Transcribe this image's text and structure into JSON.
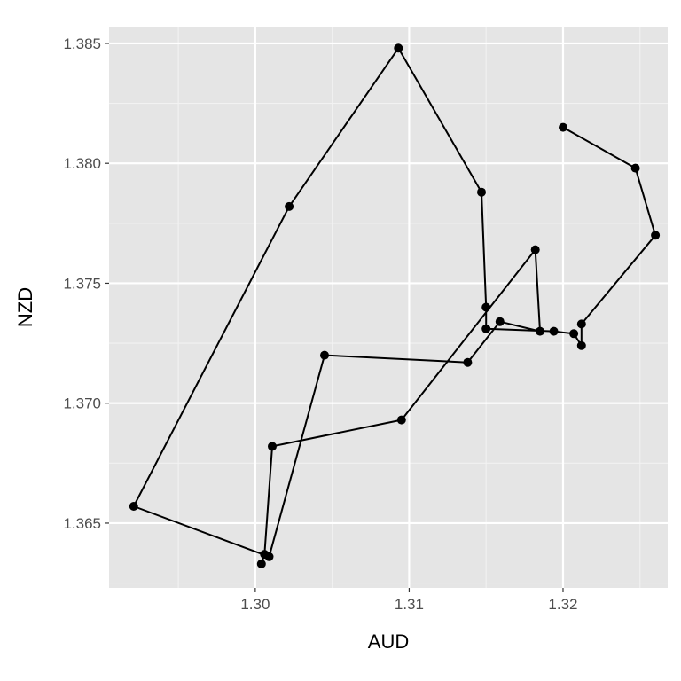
{
  "chart_data": {
    "type": "line",
    "title": "",
    "xlabel": "AUD",
    "ylabel": "NZD",
    "xlim": [
      1.2905,
      1.3268
    ],
    "ylim": [
      1.3623,
      1.3857
    ],
    "x_ticks": [
      1.3,
      1.31,
      1.32
    ],
    "x_tick_labels": [
      "1.30",
      "1.31",
      "1.32"
    ],
    "y_ticks": [
      1.365,
      1.37,
      1.375,
      1.38,
      1.385
    ],
    "y_tick_labels": [
      "1.365",
      "1.370",
      "1.375",
      "1.380",
      "1.385"
    ],
    "grid": true,
    "points": [
      {
        "x": 1.32,
        "y": 1.3815
      },
      {
        "x": 1.3247,
        "y": 1.3798
      },
      {
        "x": 1.326,
        "y": 1.377
      },
      {
        "x": 1.3212,
        "y": 1.3733
      },
      {
        "x": 1.3212,
        "y": 1.3724
      },
      {
        "x": 1.3207,
        "y": 1.3729
      },
      {
        "x": 1.3194,
        "y": 1.373
      },
      {
        "x": 1.315,
        "y": 1.3731
      },
      {
        "x": 1.315,
        "y": 1.374
      },
      {
        "x": 1.3147,
        "y": 1.3788
      },
      {
        "x": 1.3093,
        "y": 1.3848
      },
      {
        "x": 1.3022,
        "y": 1.3782
      },
      {
        "x": 1.2921,
        "y": 1.3657
      },
      {
        "x": 1.3009,
        "y": 1.3636
      },
      {
        "x": 1.3045,
        "y": 1.372
      },
      {
        "x": 1.3138,
        "y": 1.3717
      },
      {
        "x": 1.3159,
        "y": 1.3734
      },
      {
        "x": 1.3185,
        "y": 1.373
      },
      {
        "x": 1.3182,
        "y": 1.3764
      },
      {
        "x": 1.3095,
        "y": 1.3693
      },
      {
        "x": 1.3011,
        "y": 1.3682
      },
      {
        "x": 1.3006,
        "y": 1.3637
      },
      {
        "x": 1.3004,
        "y": 1.3633
      }
    ]
  },
  "colors": {
    "panel": "#e5e5e5",
    "grid_major": "#ffffff",
    "grid_minor": "#f2f2f2",
    "line": "#000000",
    "point": "#000000"
  }
}
